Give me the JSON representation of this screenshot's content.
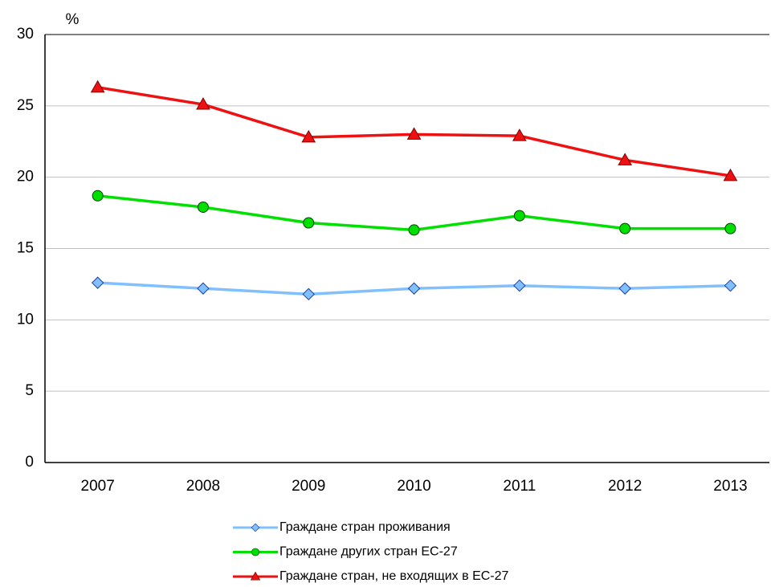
{
  "chart_data": {
    "type": "line",
    "y_label": "%",
    "categories": [
      "2007",
      "2008",
      "2009",
      "2010",
      "2011",
      "2012",
      "2013"
    ],
    "series": [
      {
        "name": "Граждане стран проживания",
        "color": "#80c0ff",
        "marker": "diamond",
        "values": [
          12.6,
          12.2,
          11.8,
          12.2,
          12.4,
          12.2,
          12.4
        ]
      },
      {
        "name": "Граждане других стран ЕС-27",
        "color": "#00e000",
        "marker": "circle",
        "values": [
          18.7,
          17.9,
          16.8,
          16.3,
          17.3,
          16.4,
          16.4
        ]
      },
      {
        "name": "Граждане стран, не входящих в ЕС-27",
        "color": "#ee1111",
        "marker": "triangle",
        "values": [
          26.3,
          25.1,
          22.8,
          23.0,
          22.9,
          21.2,
          20.1
        ]
      }
    ],
    "ylim": [
      0,
      30
    ],
    "yticks": [
      0,
      5,
      10,
      15,
      20,
      25,
      30
    ],
    "grid": true
  }
}
